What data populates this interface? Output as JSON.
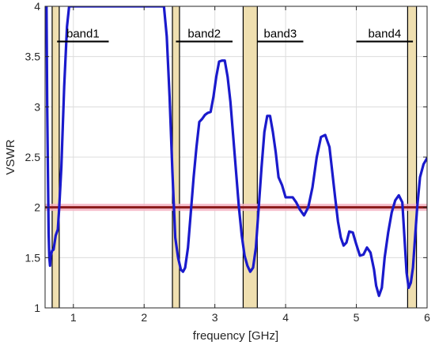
{
  "chart_data": {
    "type": "line",
    "xlabel": "frequency [GHz]",
    "ylabel": "VSWR",
    "xlim": [
      0.6,
      6
    ],
    "ylim": [
      1,
      4
    ],
    "xticks": [
      1,
      2,
      3,
      4,
      5,
      6
    ],
    "yticks": [
      1,
      1.5,
      2,
      2.5,
      3,
      3.5,
      4
    ],
    "xtick_labels": [
      "1",
      "2",
      "3",
      "4",
      "5",
      "6"
    ],
    "ytick_labels": [
      "1",
      "1.5",
      "2",
      "2.5",
      "3",
      "3.5",
      "4"
    ],
    "grid": true,
    "colors": {
      "curve": "#1a1acc",
      "threshold": "#8b1a1a",
      "threshold_glow": "#f4b4c4",
      "band_fill": "#efdfb0",
      "band_edge": "#000000",
      "band_bar": "#000000"
    },
    "threshold": 2,
    "shaded_bands": [
      {
        "from": 0.7,
        "to": 0.8
      },
      {
        "from": 2.4,
        "to": 2.5
      },
      {
        "from": 3.4,
        "to": 3.6
      },
      {
        "from": 5.725,
        "to": 5.85
      }
    ],
    "band_annotations": [
      {
        "label": "band1",
        "x_from": 0.77,
        "x_to": 1.5,
        "y": 3.65
      },
      {
        "label": "band2",
        "x_from": 2.45,
        "x_to": 3.25,
        "y": 3.65
      },
      {
        "label": "band3",
        "x_from": 3.6,
        "x_to": 4.25,
        "y": 3.65
      },
      {
        "label": "band4",
        "x_from": 5.0,
        "x_to": 5.8,
        "y": 3.65
      }
    ],
    "series": [
      {
        "x": [
          0.62,
          0.63,
          0.65,
          0.66,
          0.67,
          0.68,
          0.7,
          0.72,
          0.75,
          0.78,
          0.8,
          0.83,
          0.87,
          0.91,
          0.94,
          0.96,
          2.28,
          2.32,
          2.36,
          2.4,
          2.44,
          2.48,
          2.52,
          2.55,
          2.58,
          2.62,
          2.66,
          2.7,
          2.74,
          2.78,
          2.82,
          2.86,
          2.9,
          2.94,
          2.98,
          3.02,
          3.06,
          3.1,
          3.14,
          3.18,
          3.22,
          3.26,
          3.3,
          3.34,
          3.38,
          3.42,
          3.46,
          3.5,
          3.54,
          3.58,
          3.62,
          3.66,
          3.7,
          3.74,
          3.78,
          3.82,
          3.86,
          3.9,
          3.95,
          4.0,
          4.05,
          4.1,
          4.15,
          4.2,
          4.26,
          4.32,
          4.38,
          4.44,
          4.5,
          4.56,
          4.62,
          4.66,
          4.7,
          4.74,
          4.78,
          4.82,
          4.86,
          4.9,
          4.95,
          5.0,
          5.05,
          5.1,
          5.15,
          5.2,
          5.25,
          5.28,
          5.32,
          5.36,
          5.4,
          5.45,
          5.5,
          5.55,
          5.6,
          5.65,
          5.68,
          5.71,
          5.74,
          5.77,
          5.8,
          5.83,
          5.86,
          5.9,
          5.95,
          6.0
        ],
        "y": [
          4.0,
          3.0,
          1.75,
          1.5,
          1.42,
          1.52,
          1.57,
          1.58,
          1.72,
          1.78,
          2.0,
          2.4,
          3.2,
          3.8,
          4.0,
          4.0,
          4.0,
          3.7,
          3.1,
          2.35,
          1.7,
          1.5,
          1.38,
          1.36,
          1.4,
          1.6,
          1.95,
          2.3,
          2.6,
          2.85,
          2.88,
          2.92,
          2.94,
          2.95,
          3.1,
          3.3,
          3.45,
          3.46,
          3.46,
          3.3,
          3.05,
          2.7,
          2.35,
          2.0,
          1.72,
          1.52,
          1.42,
          1.36,
          1.4,
          1.6,
          2.0,
          2.4,
          2.75,
          2.91,
          2.91,
          2.75,
          2.55,
          2.3,
          2.22,
          2.1,
          2.1,
          2.1,
          2.05,
          1.98,
          1.92,
          2.0,
          2.2,
          2.5,
          2.7,
          2.72,
          2.6,
          2.35,
          2.1,
          1.86,
          1.7,
          1.62,
          1.65,
          1.76,
          1.75,
          1.63,
          1.52,
          1.53,
          1.6,
          1.55,
          1.38,
          1.22,
          1.12,
          1.2,
          1.5,
          1.75,
          1.95,
          2.07,
          2.12,
          2.05,
          1.7,
          1.35,
          1.2,
          1.25,
          1.4,
          1.7,
          2.0,
          2.3,
          2.43,
          2.49
        ]
      }
    ]
  }
}
